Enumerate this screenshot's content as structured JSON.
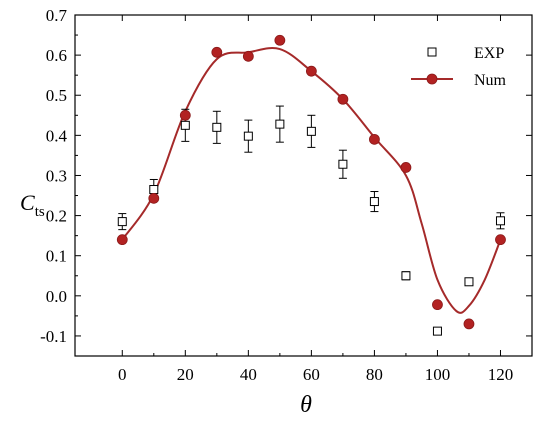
{
  "chart_data": {
    "type": "scatter",
    "xlabel": "θ",
    "ylabel": "C",
    "ylabel_sub": "ts",
    "xlim": [
      -15,
      130
    ],
    "ylim": [
      -0.15,
      0.7
    ],
    "x_ticks": [
      0,
      20,
      40,
      60,
      80,
      100,
      120
    ],
    "y_ticks": [
      -0.1,
      0.0,
      0.1,
      0.2,
      0.3,
      0.4,
      0.5,
      0.6,
      0.7
    ],
    "x_tick_labels": [
      "0",
      "20",
      "40",
      "60",
      "80",
      "100",
      "120"
    ],
    "y_tick_labels": [
      "-0.1",
      "0.0",
      "0.1",
      "0.2",
      "0.3",
      "0.4",
      "0.5",
      "0.6",
      "0.7"
    ],
    "grid": false,
    "legend_position": "top-right",
    "series": [
      {
        "name": "EXP",
        "marker": "open-square",
        "color": "#000000",
        "x": [
          0,
          10,
          20,
          30,
          40,
          50,
          60,
          70,
          80,
          90,
          100,
          110,
          120
        ],
        "y": [
          0.185,
          0.265,
          0.425,
          0.42,
          0.398,
          0.428,
          0.41,
          0.328,
          0.235,
          0.05,
          -0.088,
          0.035,
          0.187
        ],
        "error": [
          0.02,
          0.025,
          0.04,
          0.04,
          0.04,
          0.045,
          0.04,
          0.035,
          0.025,
          0.01,
          0.005,
          0.005,
          0.02
        ]
      },
      {
        "name": "Num",
        "marker": "filled-circle",
        "color": "#b22222",
        "x": [
          0,
          10,
          20,
          30,
          40,
          50,
          60,
          70,
          80,
          90,
          100,
          110,
          120
        ],
        "y": [
          0.14,
          0.243,
          0.45,
          0.607,
          0.597,
          0.637,
          0.56,
          0.49,
          0.39,
          0.32,
          -0.022,
          -0.07,
          0.14
        ]
      }
    ],
    "fit_curve": {
      "color": "#a52a2a",
      "x": [
        0,
        10,
        20,
        30,
        40,
        50,
        60,
        70,
        80,
        90,
        95,
        100,
        106,
        110,
        115,
        120
      ],
      "y": [
        0.14,
        0.253,
        0.46,
        0.59,
        0.607,
        0.615,
        0.56,
        0.49,
        0.395,
        0.3,
        0.18,
        0.04,
        -0.038,
        -0.025,
        0.04,
        0.14
      ]
    }
  }
}
